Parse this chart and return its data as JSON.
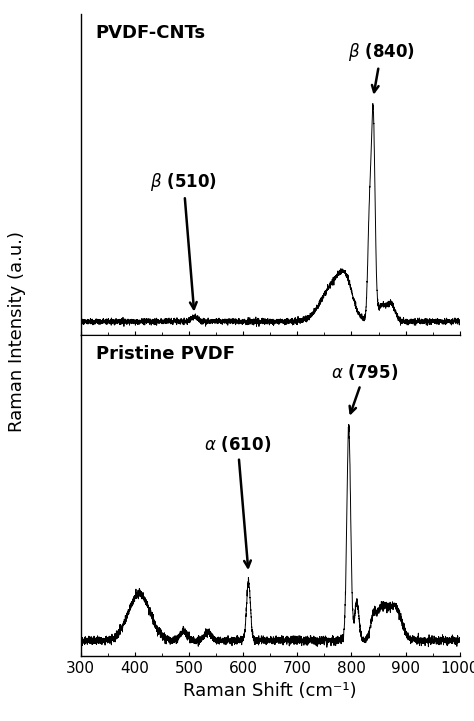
{
  "xlim": [
    300,
    1000
  ],
  "xlabel": "Raman Shift (cm⁻¹)",
  "ylabel": "Raman Intensity (a.u.)",
  "top_label": "PVDF-CNTs",
  "bottom_label": "Pristine PVDF",
  "line_color": "#000000",
  "background_color": "#ffffff",
  "label_fontsize": 13,
  "annot_fontsize": 12,
  "tick_fontsize": 11,
  "xticks": [
    300,
    400,
    500,
    600,
    700,
    800,
    900,
    1000
  ]
}
